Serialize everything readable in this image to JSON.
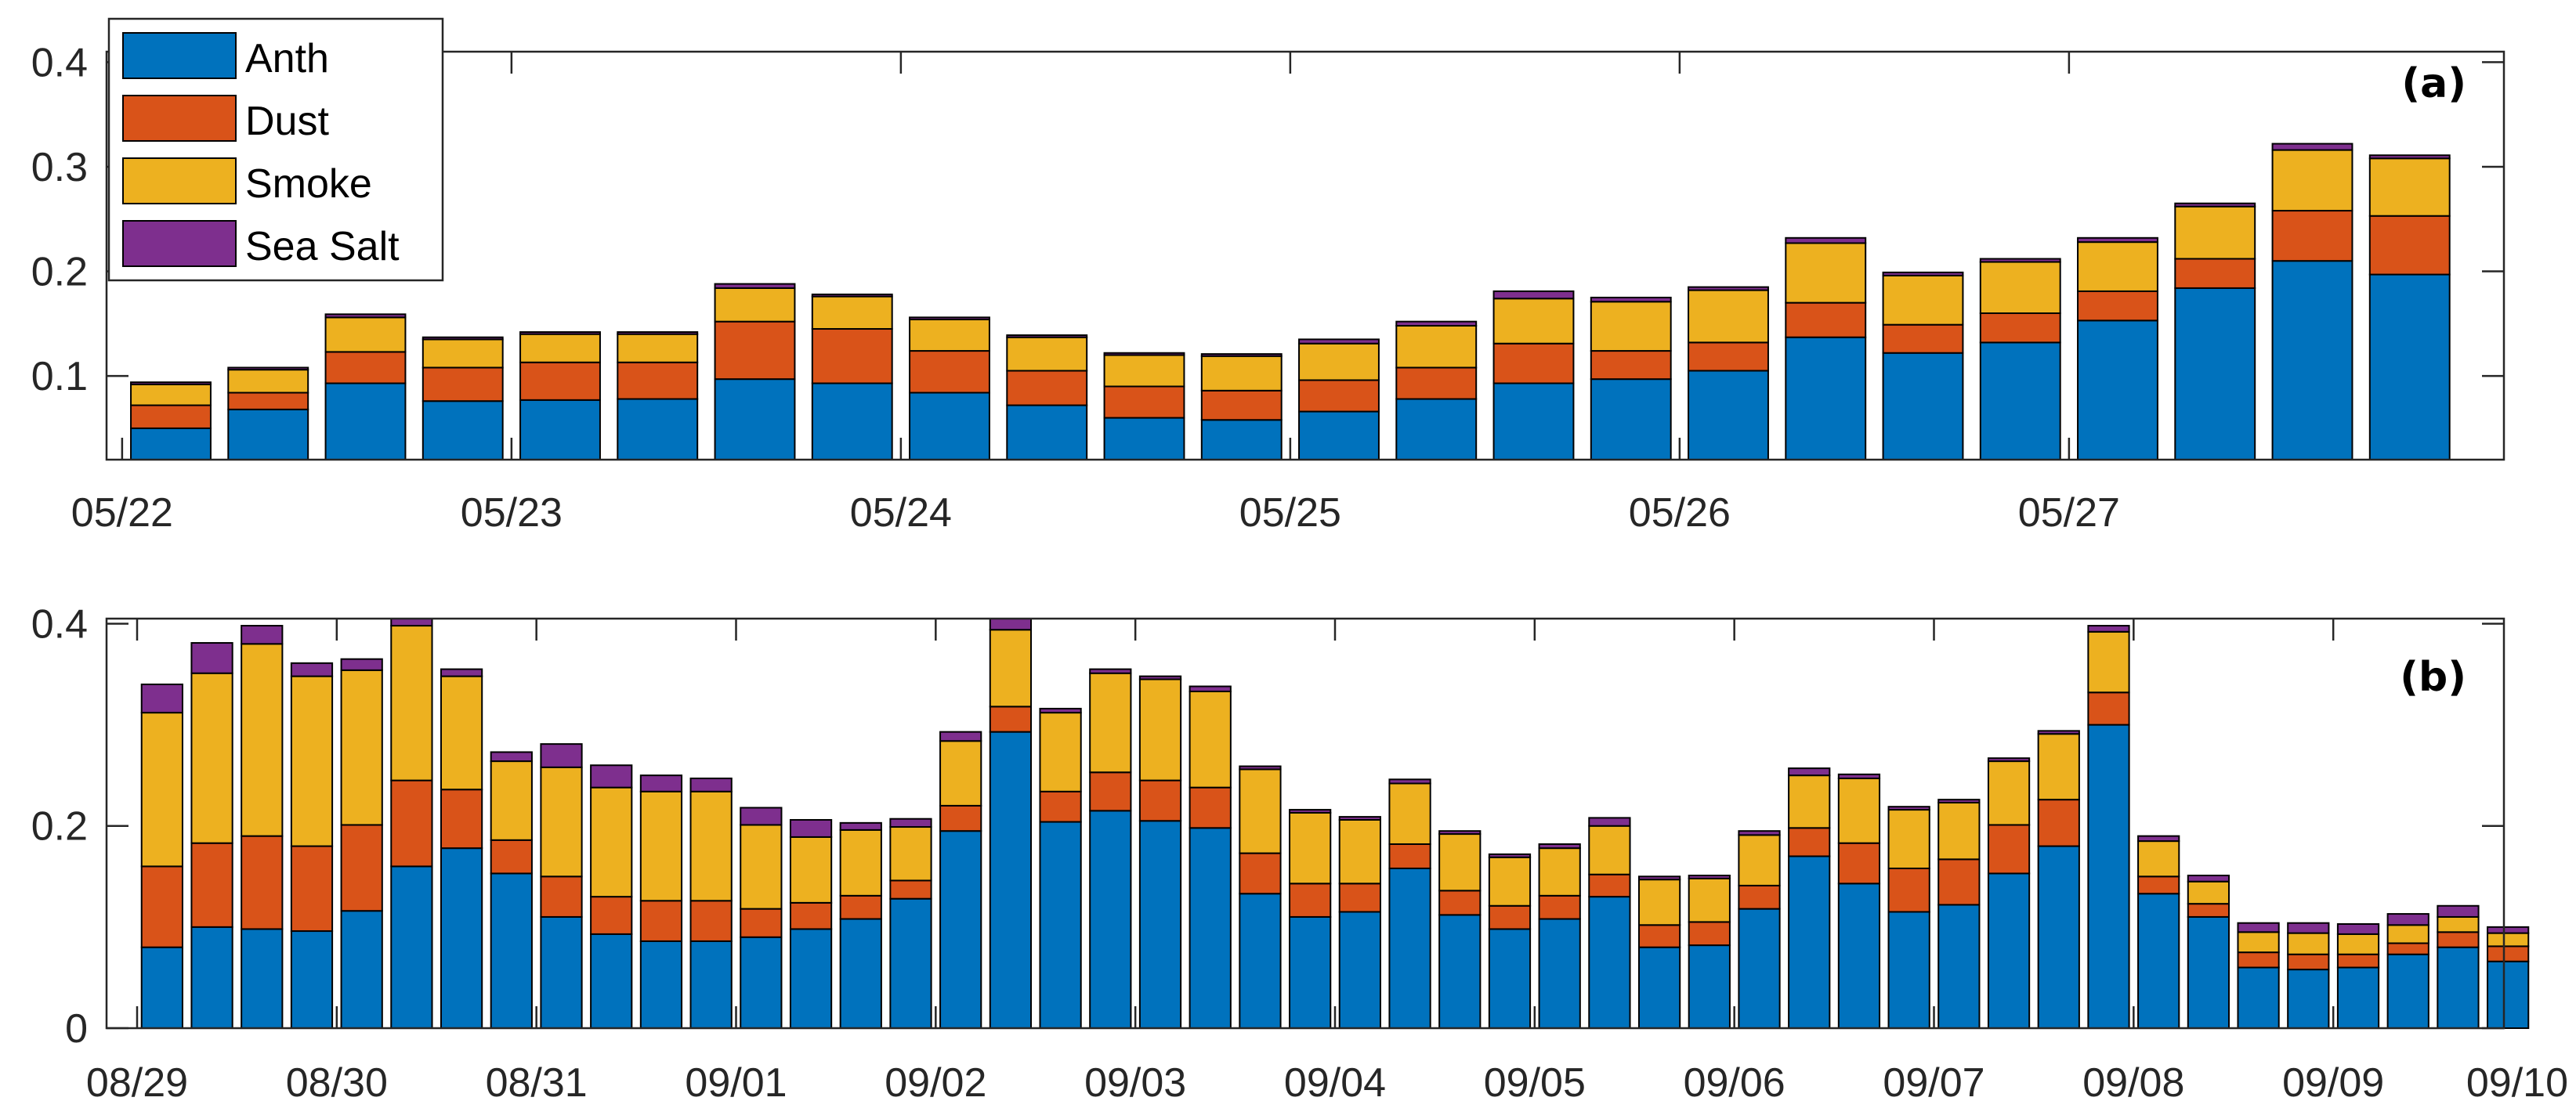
{
  "colors": {
    "Anth": "#0072BD",
    "Dust": "#D95319",
    "Smoke": "#EDB120",
    "Sea Salt": "#7E2F8E"
  },
  "legend": [
    "Anth",
    "Dust",
    "Smoke",
    "Sea Salt"
  ],
  "chart_data": [
    {
      "type": "bar",
      "stacked": true,
      "panel_label": "(a)",
      "x_tick_labels": [
        "05/22",
        "05/23",
        "05/24",
        "05/25",
        "05/26",
        "05/27"
      ],
      "bars_per_day": 4,
      "ylim": [
        0.02,
        0.41
      ],
      "y_ticks": [
        0.1,
        0.2,
        0.3,
        0.4
      ],
      "y_tick_labels": [
        "0.1",
        "0.2",
        "0.3",
        "0.4"
      ],
      "series": [
        {
          "name": "Anth",
          "values": [
            0.05,
            0.068,
            0.093,
            0.076,
            0.077,
            0.078,
            0.097,
            0.093,
            0.084,
            0.072,
            0.06,
            0.058,
            0.066,
            0.078,
            0.093,
            0.097,
            0.105,
            0.137,
            0.122,
            0.132,
            0.153,
            0.184,
            0.21,
            0.197
          ]
        },
        {
          "name": "Dust",
          "values": [
            0.022,
            0.016,
            0.03,
            0.032,
            0.036,
            0.035,
            0.055,
            0.052,
            0.04,
            0.033,
            0.03,
            0.028,
            0.03,
            0.03,
            0.038,
            0.027,
            0.027,
            0.033,
            0.027,
            0.028,
            0.028,
            0.028,
            0.048,
            0.056
          ]
        },
        {
          "name": "Smoke",
          "values": [
            0.02,
            0.022,
            0.033,
            0.027,
            0.027,
            0.027,
            0.032,
            0.031,
            0.03,
            0.032,
            0.03,
            0.033,
            0.035,
            0.04,
            0.043,
            0.047,
            0.05,
            0.057,
            0.047,
            0.049,
            0.047,
            0.05,
            0.058,
            0.055
          ]
        },
        {
          "name": "Sea Salt",
          "values": [
            0.002,
            0.002,
            0.003,
            0.002,
            0.002,
            0.002,
            0.004,
            0.002,
            0.002,
            0.002,
            0.002,
            0.002,
            0.004,
            0.004,
            0.007,
            0.004,
            0.003,
            0.005,
            0.003,
            0.003,
            0.004,
            0.003,
            0.006,
            0.003
          ]
        }
      ]
    },
    {
      "type": "bar",
      "stacked": true,
      "panel_label": "(b)",
      "x_tick_labels": [
        "08/29",
        "08/30",
        "08/31",
        "09/01",
        "09/02",
        "09/03",
        "09/04",
        "09/05",
        "09/06",
        "09/07",
        "09/08",
        "09/09",
        "09/10"
      ],
      "bars_per_day": 4,
      "ylim": [
        0,
        0.405
      ],
      "y_ticks": [
        0,
        0.2,
        0.4
      ],
      "y_tick_labels": [
        "0",
        "0.2",
        "0.4"
      ],
      "series": [
        {
          "name": "Anth",
          "values": [
            0.08,
            0.1,
            0.098,
            0.096,
            0.116,
            0.16,
            0.178,
            0.153,
            0.11,
            0.093,
            0.086,
            0.086,
            0.09,
            0.098,
            0.108,
            0.128,
            0.195,
            0.293,
            0.204,
            0.215,
            0.205,
            0.198,
            0.133,
            0.11,
            0.115,
            0.158,
            0.112,
            0.098,
            0.108,
            0.13,
            0.08,
            0.082,
            0.118,
            0.17,
            0.143,
            0.115,
            0.122,
            0.153,
            0.18,
            0.3,
            0.133,
            0.11,
            0.06,
            0.058,
            0.06,
            0.073,
            0.08,
            0.066
          ]
        },
        {
          "name": "Dust",
          "values": [
            0.08,
            0.083,
            0.092,
            0.084,
            0.085,
            0.085,
            0.058,
            0.033,
            0.04,
            0.037,
            0.04,
            0.04,
            0.028,
            0.026,
            0.023,
            0.018,
            0.025,
            0.025,
            0.03,
            0.038,
            0.04,
            0.04,
            0.04,
            0.033,
            0.028,
            0.024,
            0.024,
            0.023,
            0.023,
            0.022,
            0.022,
            0.023,
            0.023,
            0.028,
            0.04,
            0.043,
            0.045,
            0.048,
            0.046,
            0.032,
            0.017,
            0.013,
            0.015,
            0.015,
            0.013,
            0.011,
            0.015,
            0.015
          ]
        },
        {
          "name": "Smoke",
          "values": [
            0.152,
            0.168,
            0.19,
            0.168,
            0.153,
            0.153,
            0.112,
            0.078,
            0.108,
            0.108,
            0.108,
            0.108,
            0.083,
            0.065,
            0.065,
            0.053,
            0.064,
            0.076,
            0.078,
            0.098,
            0.1,
            0.095,
            0.083,
            0.07,
            0.063,
            0.06,
            0.056,
            0.048,
            0.047,
            0.048,
            0.045,
            0.043,
            0.05,
            0.052,
            0.064,
            0.058,
            0.056,
            0.063,
            0.065,
            0.06,
            0.035,
            0.022,
            0.02,
            0.021,
            0.02,
            0.018,
            0.015,
            0.013
          ]
        },
        {
          "name": "Sea Salt",
          "values": [
            0.028,
            0.03,
            0.018,
            0.013,
            0.011,
            0.01,
            0.007,
            0.009,
            0.023,
            0.022,
            0.016,
            0.013,
            0.017,
            0.017,
            0.007,
            0.008,
            0.009,
            0.012,
            0.004,
            0.004,
            0.003,
            0.005,
            0.003,
            0.003,
            0.003,
            0.004,
            0.003,
            0.003,
            0.004,
            0.008,
            0.003,
            0.003,
            0.004,
            0.007,
            0.004,
            0.003,
            0.003,
            0.003,
            0.003,
            0.006,
            0.005,
            0.006,
            0.009,
            0.01,
            0.01,
            0.011,
            0.011,
            0.006
          ]
        }
      ]
    }
  ]
}
